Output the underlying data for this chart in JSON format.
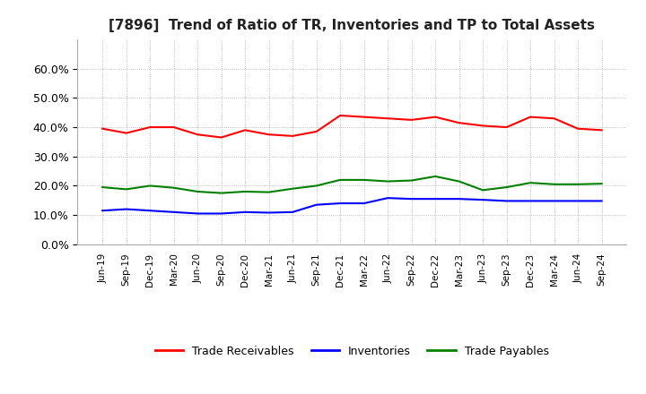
{
  "title": "[7896]  Trend of Ratio of TR, Inventories and TP to Total Assets",
  "x_labels": [
    "Jun-19",
    "Sep-19",
    "Dec-19",
    "Mar-20",
    "Jun-20",
    "Sep-20",
    "Dec-20",
    "Mar-21",
    "Jun-21",
    "Sep-21",
    "Dec-21",
    "Mar-22",
    "Jun-22",
    "Sep-22",
    "Dec-22",
    "Mar-23",
    "Jun-23",
    "Sep-23",
    "Dec-23",
    "Mar-24",
    "Jun-24",
    "Sep-24"
  ],
  "trade_receivables": [
    0.395,
    0.38,
    0.4,
    0.4,
    0.375,
    0.365,
    0.39,
    0.375,
    0.37,
    0.385,
    0.44,
    0.435,
    0.43,
    0.425,
    0.435,
    0.415,
    0.405,
    0.4,
    0.435,
    0.43,
    0.395,
    0.39
  ],
  "inventories": [
    0.115,
    0.12,
    0.115,
    0.11,
    0.105,
    0.105,
    0.11,
    0.108,
    0.11,
    0.135,
    0.14,
    0.14,
    0.158,
    0.155,
    0.155,
    0.155,
    0.152,
    0.148,
    0.148,
    0.148,
    0.148,
    0.148
  ],
  "trade_payables": [
    0.195,
    0.188,
    0.2,
    0.193,
    0.18,
    0.175,
    0.18,
    0.178,
    0.19,
    0.2,
    0.22,
    0.22,
    0.215,
    0.218,
    0.232,
    0.215,
    0.185,
    0.195,
    0.21,
    0.205,
    0.205,
    0.207
  ],
  "colors": {
    "trade_receivables": "#FF0000",
    "inventories": "#0000FF",
    "trade_payables": "#008000"
  },
  "ylim": [
    0.0,
    0.7
  ],
  "yticks": [
    0.0,
    0.1,
    0.2,
    0.3,
    0.4,
    0.5,
    0.6
  ],
  "legend_labels": [
    "Trade Receivables",
    "Inventories",
    "Trade Payables"
  ],
  "background_color": "#FFFFFF",
  "grid_color": "#AAAAAA",
  "line_width": 1.5
}
